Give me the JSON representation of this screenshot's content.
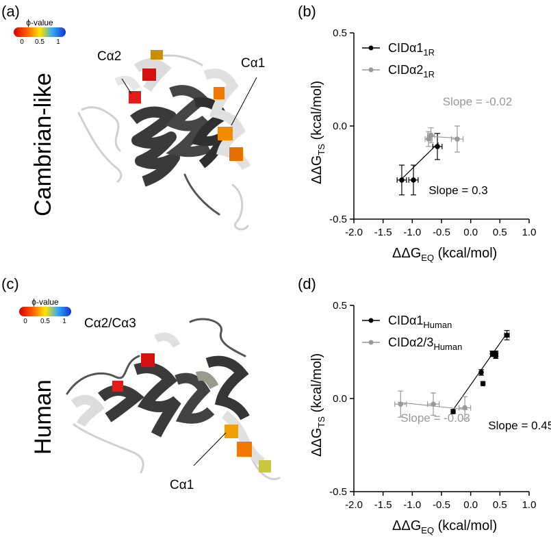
{
  "panels": {
    "a": {
      "letter": "(a)",
      "label": "Cambrian-like",
      "colorbar": {
        "title": "ϕ-value",
        "ticks": [
          "0",
          "0.5",
          "1"
        ]
      },
      "annotations": [
        "Cα2",
        "Cα1"
      ]
    },
    "c": {
      "letter": "(c)",
      "label": "Human",
      "colorbar": {
        "title": "ϕ-value",
        "ticks": [
          "0",
          "0.5",
          "1"
        ]
      },
      "annotations": [
        "Cα2/Cα3",
        "Cα1"
      ]
    },
    "b": {
      "letter": "(b)"
    },
    "d": {
      "letter": "(d)"
    }
  },
  "colors": {
    "series1": "#000000",
    "series2": "#999999",
    "helix_dark": "#3a3a3a",
    "helix_light": "#d4d4d4",
    "red": "#d41010",
    "orange": "#f07800",
    "yellow": "#c8c840"
  },
  "chart_data": [
    {
      "panel": "b",
      "type": "scatter",
      "xlabel": "ΔΔG",
      "xlabel_sub": "EQ",
      "xlabel_unit": " (kcal/mol)",
      "ylabel": "ΔΔG",
      "ylabel_sub": "TS",
      "ylabel_unit": " (kcal/mol)",
      "xlim": [
        -2.0,
        1.0
      ],
      "ylim": [
        -0.5,
        0.5
      ],
      "xticks": [
        "-2.0",
        "-1.5",
        "-1.0",
        "-0.5",
        "0.0",
        "0.5",
        "1.0"
      ],
      "yticks": [
        "-0.5",
        "0.0",
        "0.5"
      ],
      "legend_position": "top-left",
      "series": [
        {
          "name": "CIDα1",
          "name_sub": "1R",
          "color": "#000000",
          "points": [
            {
              "x": -1.18,
              "y": -0.29,
              "xerr": 0.08,
              "yerr": 0.08
            },
            {
              "x": -0.98,
              "y": -0.29,
              "xerr": 0.08,
              "yerr": 0.08
            },
            {
              "x": -0.57,
              "y": -0.11,
              "xerr": 0.08,
              "yerr": 0.07
            }
          ],
          "fit": {
            "x": [
              -1.2,
              -0.55
            ],
            "y": [
              -0.29,
              -0.09
            ]
          },
          "annotation": "Slope = 0.3",
          "annotation_at": [
            -0.72,
            -0.365
          ]
        },
        {
          "name": "CIDα2",
          "name_sub": "1R",
          "color": "#999999",
          "points": [
            {
              "x": -0.72,
              "y": -0.07,
              "xerr": 0.06,
              "yerr": 0.04
            },
            {
              "x": -0.68,
              "y": -0.05,
              "xerr": 0.06,
              "yerr": 0.04
            },
            {
              "x": -0.23,
              "y": -0.07,
              "xerr": 0.1,
              "yerr": 0.07
            }
          ],
          "fit": {
            "x": [
              -0.75,
              -0.22
            ],
            "y": [
              -0.055,
              -0.065
            ]
          },
          "annotation": "Slope = -0.02",
          "annotation_at": [
            -0.48,
            0.11
          ]
        }
      ]
    },
    {
      "panel": "d",
      "type": "scatter",
      "xlabel": "ΔΔG",
      "xlabel_sub": "EQ",
      "xlabel_unit": " (kcal/mol)",
      "ylabel": "ΔΔG",
      "ylabel_sub": "TS",
      "ylabel_unit": " (kcal/mol)",
      "xlim": [
        -2.0,
        1.0
      ],
      "ylim": [
        -0.5,
        0.5
      ],
      "xticks": [
        "-2.0",
        "-1.5",
        "-1.0",
        "-0.5",
        "0.0",
        "0.5",
        "1.0"
      ],
      "yticks": [
        "-0.5",
        "0.0",
        "0.5"
      ],
      "legend_position": "top-left",
      "series": [
        {
          "name": "CIDα1",
          "name_sub": "Human",
          "color": "#000000",
          "points": [
            {
              "x": -0.3,
              "y": -0.07,
              "xerr": 0.02,
              "yerr": 0.01
            },
            {
              "x": 0.18,
              "y": 0.14,
              "xerr": 0.02,
              "yerr": 0.015
            },
            {
              "x": 0.21,
              "y": 0.08,
              "xerr": 0.02,
              "yerr": 0.01
            },
            {
              "x": 0.37,
              "y": 0.24,
              "xerr": 0.03,
              "yerr": 0.015
            },
            {
              "x": 0.43,
              "y": 0.23,
              "xerr": 0.03,
              "yerr": 0.015
            },
            {
              "x": 0.43,
              "y": 0.24,
              "xerr": 0.03,
              "yerr": 0.015
            },
            {
              "x": 0.62,
              "y": 0.34,
              "xerr": 0.04,
              "yerr": 0.025
            }
          ],
          "fit": {
            "x": [
              -0.3,
              0.62
            ],
            "y": [
              -0.06,
              0.35
            ]
          },
          "annotation": "Slope = 0.45",
          "annotation_at": [
            0.3,
            -0.165
          ]
        },
        {
          "name": "CIDα2/3",
          "name_sub": "Human",
          "color": "#999999",
          "points": [
            {
              "x": -1.2,
              "y": -0.03,
              "xerr": 0.1,
              "yerr": 0.07
            },
            {
              "x": -0.64,
              "y": -0.03,
              "xerr": 0.1,
              "yerr": 0.06
            },
            {
              "x": -0.1,
              "y": -0.05,
              "xerr": 0.1,
              "yerr": 0.06
            }
          ],
          "fit": {
            "x": [
              -1.25,
              -0.05
            ],
            "y": [
              -0.02,
              -0.06
            ]
          },
          "annotation": "Slope = -0.03",
          "annotation_at": [
            -1.2,
            -0.125
          ]
        }
      ]
    }
  ]
}
